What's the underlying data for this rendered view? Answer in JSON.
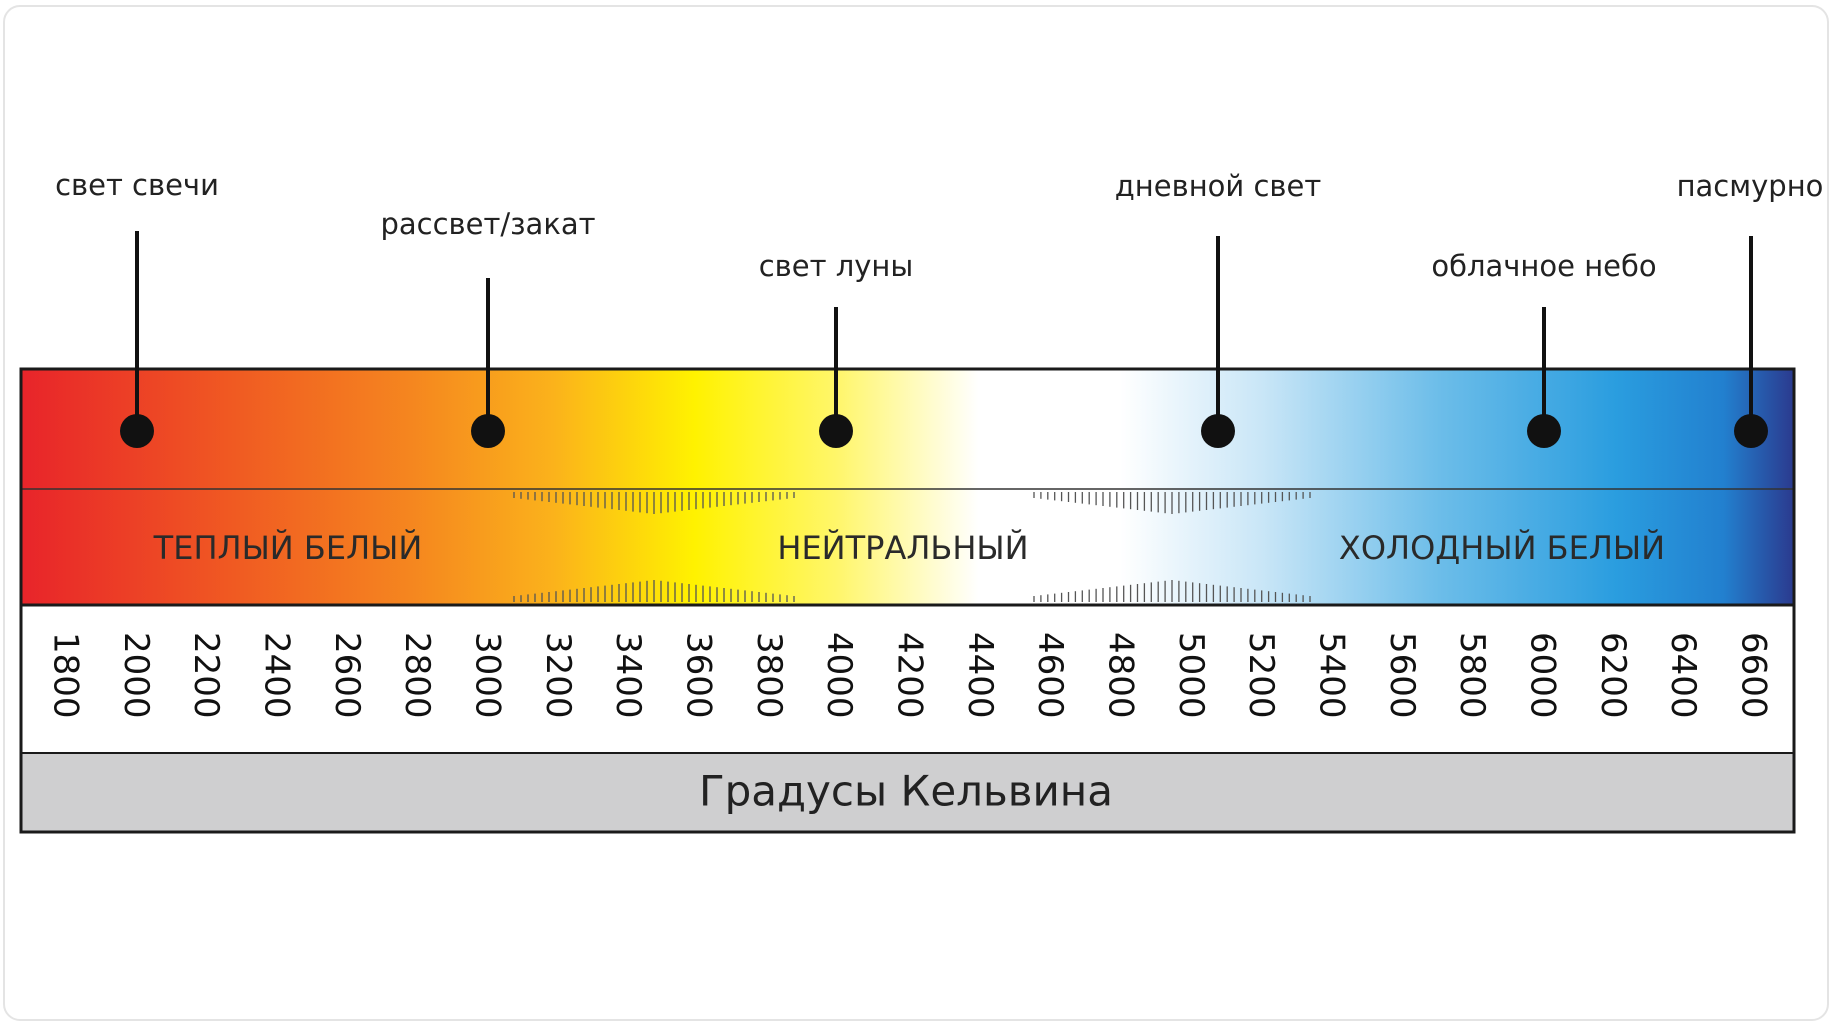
{
  "markers": [
    {
      "label": "свет свечи"
    },
    {
      "label": "рассвет/закат"
    },
    {
      "label": "свет луны"
    },
    {
      "label": "дневной свет"
    },
    {
      "label": "облачное небо"
    },
    {
      "label": "пасмурно"
    }
  ],
  "zones": [
    "ТЕПЛЫЙ БЕЛЫЙ",
    "НЕЙТРАЛЬНЫЙ",
    "ХОЛОДНЫЙ БЕЛЫЙ"
  ],
  "scale": [
    1800,
    2000,
    2200,
    2400,
    2600,
    2800,
    3000,
    3200,
    3400,
    3600,
    3800,
    4000,
    4200,
    4400,
    4600,
    4800,
    5000,
    5200,
    5400,
    5600,
    5800,
    6000,
    6200,
    6400,
    6600
  ],
  "footer": "Градусы Кельвина"
}
